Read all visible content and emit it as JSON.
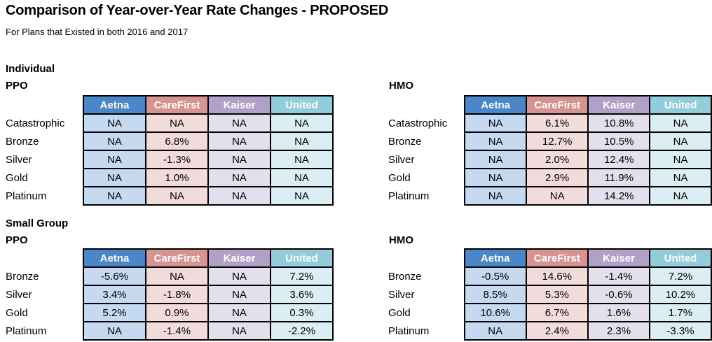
{
  "header": {
    "title": "Comparison of Year-over-Year Rate Changes - PROPOSED",
    "subtitle": "For Plans that Existed in both 2016 and 2017"
  },
  "sections": [
    {
      "label": "Individual"
    },
    {
      "label": "Small Group"
    }
  ],
  "colors": {
    "header_text": "#ffffff",
    "border": "#000000",
    "columns": [
      {
        "name": "Aetna",
        "header": "#4a86c8",
        "body": "#c5d9f1"
      },
      {
        "name": "CareFirst",
        "header": "#d79392",
        "body": "#f2dcdb"
      },
      {
        "name": "Kaiser",
        "header": "#b1a0c7",
        "body": "#e4dfec"
      },
      {
        "name": "United",
        "header": "#92cddc",
        "body": "#daeef3"
      }
    ]
  },
  "chart_data": [
    {
      "type": "table",
      "title": "Individual PPO",
      "group_label": "Individual",
      "type_label": "PPO",
      "columns": [
        "Aetna",
        "CareFirst",
        "Kaiser",
        "United"
      ],
      "row_labels": [
        "Catastrophic",
        "Bronze",
        "Silver",
        "Gold",
        "Platinum"
      ],
      "rows": [
        [
          "NA",
          "NA",
          "NA",
          "NA"
        ],
        [
          "NA",
          "6.8%",
          "NA",
          "NA"
        ],
        [
          "NA",
          "-1.3%",
          "NA",
          "NA"
        ],
        [
          "NA",
          "1.0%",
          "NA",
          "NA"
        ],
        [
          "NA",
          "NA",
          "NA",
          "NA"
        ]
      ]
    },
    {
      "type": "table",
      "title": "Individual HMO",
      "group_label": "Individual",
      "type_label": "HMO",
      "columns": [
        "Aetna",
        "CareFirst",
        "Kaiser",
        "United"
      ],
      "row_labels": [
        "Catastrophic",
        "Bronze",
        "Silver",
        "Gold",
        "Platinum"
      ],
      "rows": [
        [
          "NA",
          "6.1%",
          "10.8%",
          "NA"
        ],
        [
          "NA",
          "12.7%",
          "10.5%",
          "NA"
        ],
        [
          "NA",
          "2.0%",
          "12.4%",
          "NA"
        ],
        [
          "NA",
          "2.9%",
          "11.9%",
          "NA"
        ],
        [
          "NA",
          "NA",
          "14.2%",
          "NA"
        ]
      ]
    },
    {
      "type": "table",
      "title": "Small Group PPO",
      "group_label": "Small Group",
      "type_label": "PPO",
      "columns": [
        "Aetna",
        "CareFirst",
        "Kaiser",
        "United"
      ],
      "row_labels": [
        "Bronze",
        "Silver",
        "Gold",
        "Platinum"
      ],
      "rows": [
        [
          "-5.6%",
          "NA",
          "NA",
          "7.2%"
        ],
        [
          "3.4%",
          "-1.8%",
          "NA",
          "3.6%"
        ],
        [
          "5.2%",
          "0.9%",
          "NA",
          "0.3%"
        ],
        [
          "NA",
          "-1.4%",
          "NA",
          "-2.2%"
        ]
      ]
    },
    {
      "type": "table",
      "title": "Small Group HMO",
      "group_label": "Small Group",
      "type_label": "HMO",
      "columns": [
        "Aetna",
        "CareFirst",
        "Kaiser",
        "United"
      ],
      "row_labels": [
        "Bronze",
        "Silver",
        "Gold",
        "Platinum"
      ],
      "rows": [
        [
          "-0.5%",
          "14.6%",
          "-1.4%",
          "7.2%"
        ],
        [
          "8.5%",
          "5.3%",
          "-0.6%",
          "10.2%"
        ],
        [
          "10.6%",
          "6.7%",
          "1.6%",
          "1.7%"
        ],
        [
          "NA",
          "2.4%",
          "2.3%",
          "-3.3%"
        ]
      ]
    }
  ]
}
